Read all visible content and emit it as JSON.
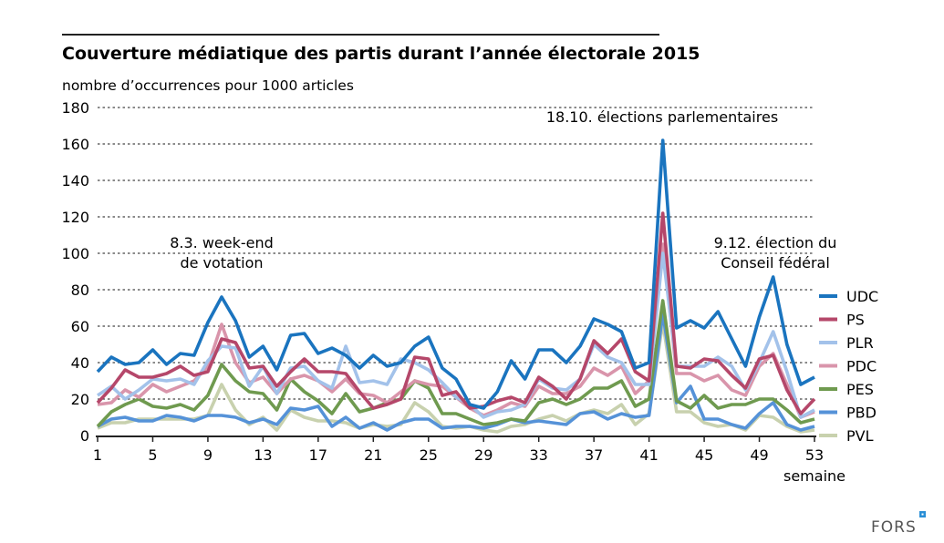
{
  "chart_data": {
    "type": "line",
    "title": "Couverture médiatique des partis durant l’année électorale 2015",
    "ylabel": "nombre d’occurrences pour 1000 articles",
    "xlabel": "semaine",
    "ylim": [
      0,
      180
    ],
    "yticks": [
      0,
      20,
      40,
      60,
      80,
      100,
      120,
      140,
      160,
      180
    ],
    "xlim": [
      1,
      53
    ],
    "xticks": [
      1,
      5,
      9,
      13,
      17,
      21,
      25,
      29,
      33,
      37,
      41,
      45,
      49,
      53
    ],
    "grid": "horizontal dotted",
    "legend_placement": "right",
    "annotations": [
      {
        "week": 10,
        "lines": [
          "8.3. week-end",
          "de votation"
        ]
      },
      {
        "week": 42,
        "lines": [
          "18.10. élections parlementaires"
        ]
      },
      {
        "week": 50,
        "lines": [
          "9.12. élection du",
          "Conseil fédéral"
        ]
      }
    ],
    "x": [
      1,
      2,
      3,
      4,
      5,
      6,
      7,
      8,
      9,
      10,
      11,
      12,
      13,
      14,
      15,
      16,
      17,
      18,
      19,
      20,
      21,
      22,
      23,
      24,
      25,
      26,
      27,
      28,
      29,
      30,
      31,
      32,
      33,
      34,
      35,
      36,
      37,
      38,
      39,
      40,
      41,
      42,
      43,
      44,
      45,
      46,
      47,
      48,
      49,
      50,
      51,
      52,
      53
    ],
    "series": [
      {
        "name": "UDC",
        "color": "#1a74bf",
        "values": [
          35,
          43,
          39,
          40,
          47,
          39,
          45,
          44,
          62,
          76,
          63,
          43,
          49,
          36,
          55,
          56,
          45,
          48,
          44,
          37,
          44,
          38,
          40,
          49,
          54,
          37,
          31,
          17,
          15,
          24,
          41,
          31,
          47,
          47,
          40,
          49,
          64,
          61,
          57,
          37,
          40,
          162,
          59,
          63,
          59,
          68,
          53,
          38,
          65,
          87,
          50,
          28,
          32
        ]
      },
      {
        "name": "PS",
        "color": "#b5476a",
        "values": [
          18,
          26,
          36,
          32,
          32,
          34,
          38,
          33,
          35,
          53,
          51,
          37,
          38,
          27,
          35,
          42,
          35,
          35,
          34,
          24,
          15,
          17,
          20,
          43,
          42,
          22,
          24,
          15,
          16,
          19,
          21,
          18,
          32,
          27,
          20,
          31,
          52,
          45,
          53,
          35,
          30,
          122,
          38,
          37,
          42,
          41,
          33,
          26,
          42,
          44,
          25,
          12,
          20
        ]
      },
      {
        "name": "PLR",
        "color": "#a3c2ea",
        "values": [
          22,
          27,
          20,
          25,
          31,
          30,
          31,
          28,
          41,
          49,
          48,
          27,
          38,
          23,
          37,
          38,
          30,
          26,
          49,
          29,
          30,
          28,
          42,
          40,
          36,
          29,
          21,
          17,
          10,
          13,
          14,
          17,
          31,
          26,
          25,
          31,
          50,
          43,
          40,
          28,
          28,
          100,
          38,
          38,
          38,
          43,
          38,
          25,
          40,
          57,
          35,
          10,
          14
        ]
      },
      {
        "name": "PDC",
        "color": "#d995ab",
        "values": [
          17,
          18,
          25,
          21,
          28,
          24,
          27,
          30,
          38,
          61,
          40,
          29,
          32,
          23,
          31,
          33,
          30,
          24,
          31,
          23,
          22,
          18,
          24,
          30,
          28,
          27,
          21,
          15,
          11,
          14,
          18,
          16,
          27,
          23,
          23,
          27,
          37,
          33,
          38,
          23,
          30,
          105,
          34,
          34,
          30,
          33,
          25,
          22,
          38,
          45,
          28,
          10,
          13
        ]
      },
      {
        "name": "PES",
        "color": "#6f9a4f",
        "values": [
          5,
          13,
          17,
          20,
          16,
          15,
          17,
          14,
          22,
          39,
          30,
          24,
          23,
          14,
          31,
          24,
          19,
          12,
          23,
          13,
          15,
          18,
          20,
          30,
          26,
          12,
          12,
          9,
          6,
          7,
          9,
          8,
          18,
          20,
          17,
          20,
          26,
          26,
          30,
          16,
          20,
          74,
          19,
          15,
          22,
          15,
          17,
          17,
          20,
          20,
          14,
          7,
          9
        ]
      },
      {
        "name": "PBD",
        "color": "#5592d8",
        "values": [
          5,
          9,
          10,
          8,
          8,
          11,
          10,
          8,
          11,
          11,
          10,
          7,
          9,
          6,
          15,
          14,
          16,
          5,
          10,
          4,
          7,
          3,
          7,
          9,
          9,
          4,
          5,
          5,
          4,
          6,
          9,
          7,
          8,
          7,
          6,
          12,
          13,
          9,
          12,
          10,
          11,
          67,
          18,
          27,
          9,
          9,
          6,
          4,
          12,
          18,
          6,
          3,
          5
        ]
      },
      {
        "name": "PVL",
        "color": "#c8d1ae",
        "values": [
          4,
          7,
          7,
          9,
          9,
          9,
          9,
          9,
          11,
          28,
          14,
          6,
          10,
          3,
          14,
          10,
          8,
          8,
          7,
          4,
          6,
          5,
          6,
          18,
          13,
          5,
          4,
          5,
          3,
          2,
          5,
          6,
          9,
          11,
          8,
          12,
          14,
          12,
          17,
          6,
          12,
          62,
          13,
          13,
          7,
          5,
          6,
          3,
          11,
          10,
          5,
          2,
          3
        ]
      }
    ]
  },
  "logo": {
    "text": "FORS",
    "accent_color": "#2a8fd6"
  }
}
